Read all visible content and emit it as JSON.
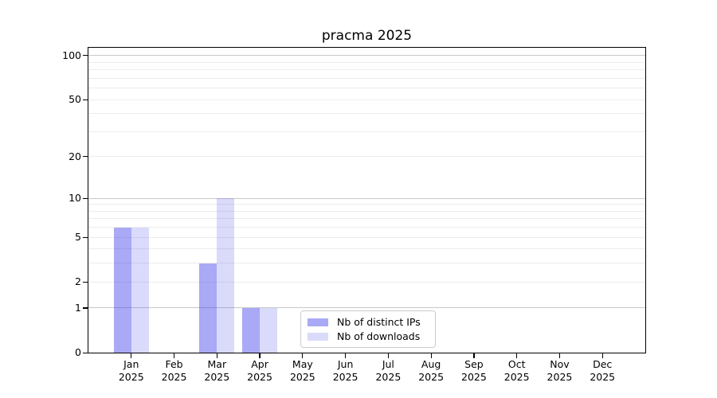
{
  "chart_data": {
    "type": "bar",
    "title": "pracma 2025",
    "categories": [
      "Jan",
      "Feb",
      "Mar",
      "Apr",
      "May",
      "Jun",
      "Jul",
      "Aug",
      "Sep",
      "Oct",
      "Nov",
      "Dec"
    ],
    "x_tick_year": "2025",
    "series": [
      {
        "name": "Nb of distinct IPs",
        "color": "rgba(60,60,235,0.44)",
        "values": [
          6,
          0,
          3,
          1,
          0,
          0,
          0,
          0,
          0,
          0,
          0,
          0
        ]
      },
      {
        "name": "Nb of downloads",
        "color": "rgba(60,60,235,0.19)",
        "values": [
          6,
          0,
          10,
          1,
          0,
          0,
          0,
          0,
          0,
          0,
          0,
          0
        ]
      }
    ],
    "yscale": "log1p",
    "ylim": [
      0,
      113
    ],
    "y_tick_values": [
      0,
      1,
      2,
      5,
      10,
      20,
      50,
      100
    ],
    "y_major_gridlines": [
      1,
      10,
      100
    ],
    "y_minor_gridlines": [
      2,
      3,
      4,
      5,
      6,
      7,
      8,
      9,
      20,
      30,
      40,
      50,
      60,
      70,
      80,
      90
    ],
    "grid": true,
    "legend_position": "lower center",
    "colors": {
      "grid_minor": "#ececec",
      "grid_major": "#c8c8c8",
      "spine": "#000000"
    }
  }
}
